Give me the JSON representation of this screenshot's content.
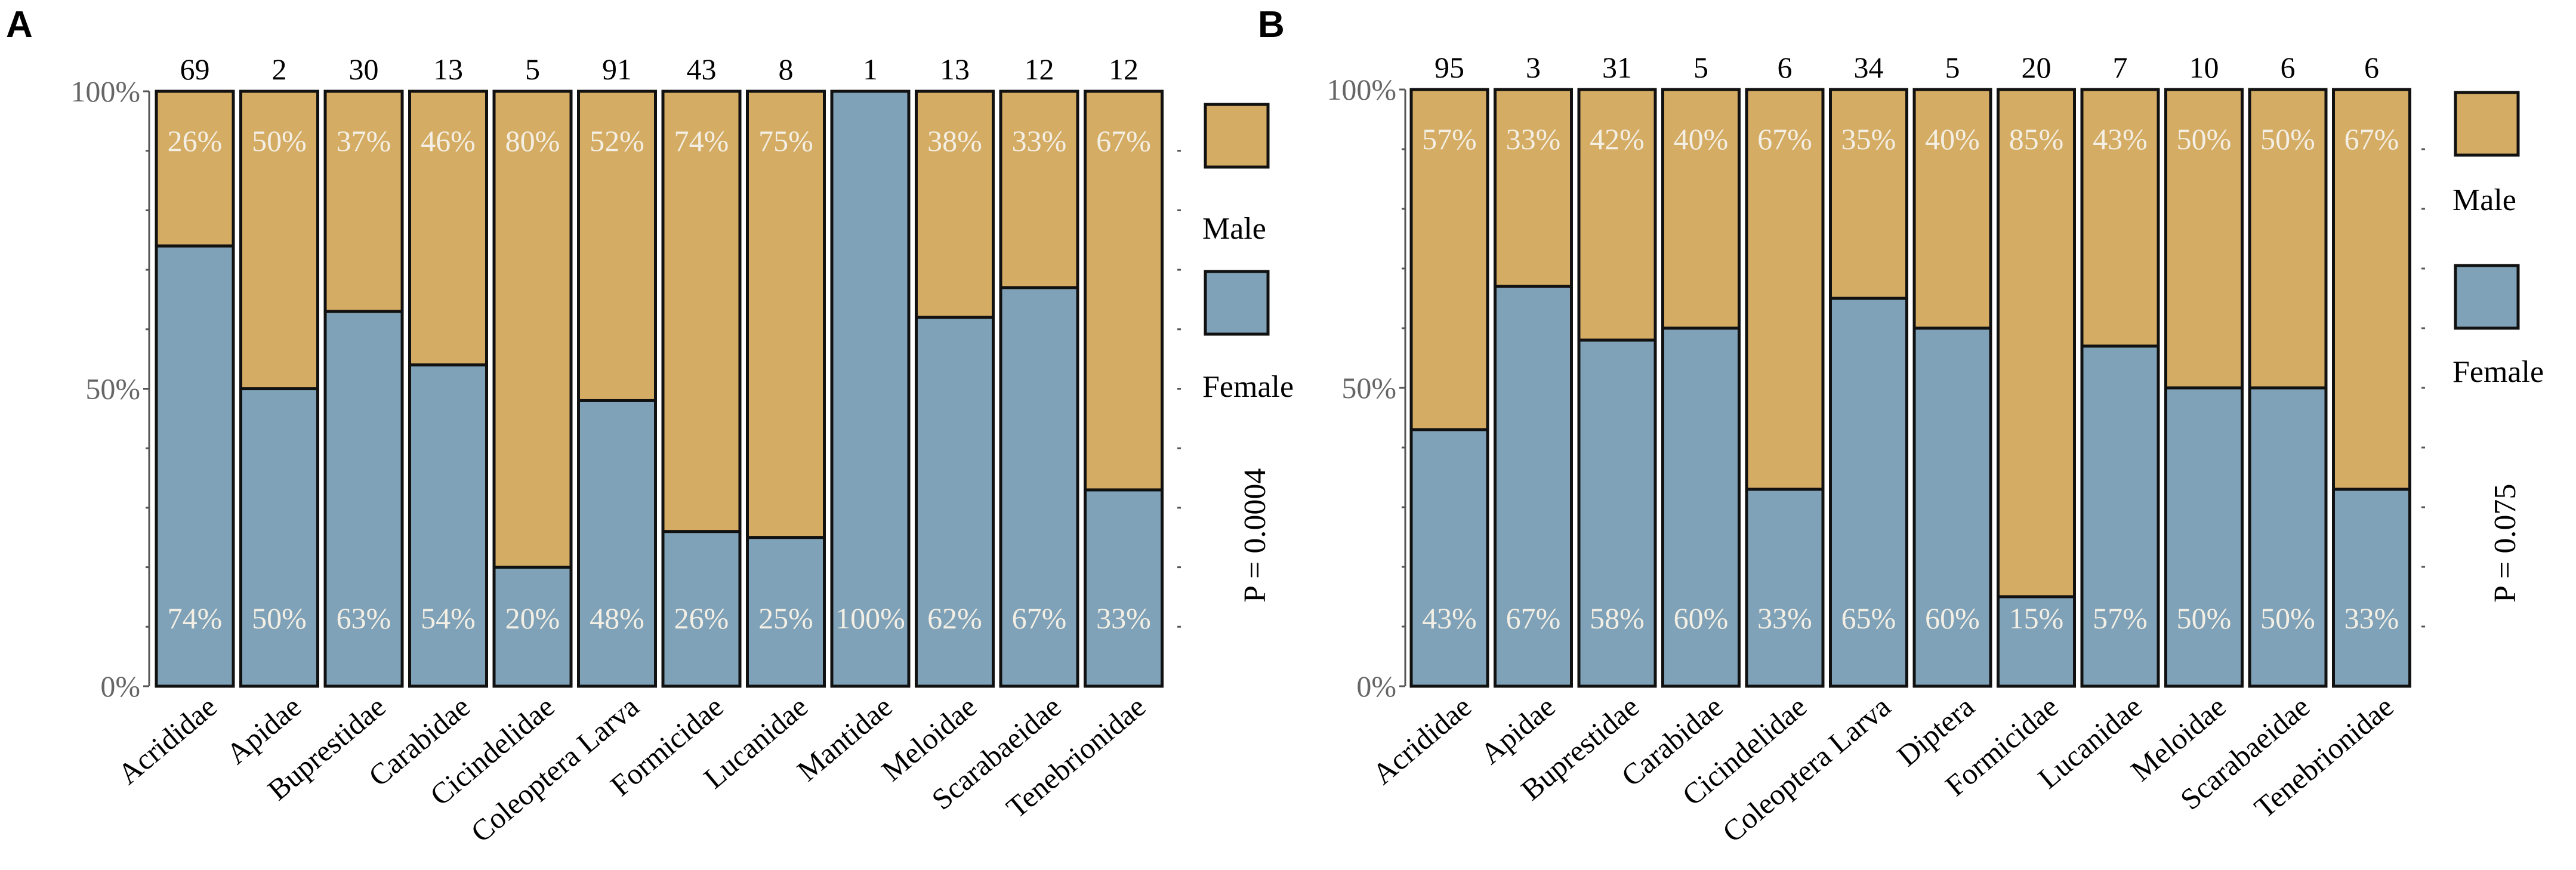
{
  "colors": {
    "male": "#D4AC64",
    "female": "#7FA2B8"
  },
  "legend": {
    "male_label": "Male",
    "female_label": "Female"
  },
  "chart_data": [
    {
      "type": "bar",
      "panel": "A",
      "stacked": true,
      "series_order": [
        "Female",
        "Male"
      ],
      "ylim": [
        0,
        100
      ],
      "ytick_labels": [
        "0%",
        "50%",
        "100%"
      ],
      "p_value": "P = 0.0004",
      "categories": [
        "Acrididae",
        "Apidae",
        "Buprestidae",
        "Carabidae",
        "Cicindelidae",
        "Coleoptera Larva",
        "Formicidae",
        "Lucanidae",
        "Mantidae",
        "Meloidae",
        "Scarabaeidae",
        "Tenebrionidae"
      ],
      "counts": [
        "69",
        "2",
        "30",
        "13",
        "5",
        "91",
        "43",
        "8",
        "1",
        "13",
        "12",
        "12"
      ],
      "female_values": [
        74,
        50,
        63,
        54,
        20,
        48,
        26,
        25,
        100,
        62,
        67,
        33
      ],
      "male_values": [
        26,
        50,
        37,
        46,
        80,
        52,
        74,
        75,
        0,
        38,
        33,
        67
      ],
      "female_labels": [
        "74%",
        "50%",
        "63%",
        "54%",
        "20%",
        "48%",
        "26%",
        "25%",
        "100%",
        "62%",
        "67%",
        "33%"
      ],
      "male_labels": [
        "26%",
        "50%",
        "37%",
        "46%",
        "80%",
        "52%",
        "74%",
        "75%",
        "",
        "38%",
        "33%",
        "67%"
      ]
    },
    {
      "type": "bar",
      "panel": "B",
      "stacked": true,
      "series_order": [
        "Female",
        "Male"
      ],
      "ylim": [
        0,
        100
      ],
      "ytick_labels": [
        "0%",
        "50%",
        "100%"
      ],
      "p_value": "P = 0.075",
      "categories": [
        "Acrididae",
        "Apidae",
        "Buprestidae",
        "Carabidae",
        "Cicindelidae",
        "Coleoptera Larva",
        "Diptera",
        "Formicidae",
        "Lucanidae",
        "Meloidae",
        "Scarabaeidae",
        "Tenebrionidae"
      ],
      "counts": [
        "95",
        "3",
        "31",
        "5",
        "6",
        "34",
        "5",
        "20",
        "7",
        "10",
        "6",
        "6"
      ],
      "female_values": [
        43,
        67,
        58,
        60,
        33,
        65,
        60,
        15,
        57,
        50,
        50,
        33
      ],
      "male_values": [
        57,
        33,
        42,
        40,
        67,
        35,
        40,
        85,
        43,
        50,
        50,
        67
      ],
      "female_labels": [
        "43%",
        "67%",
        "58%",
        "60%",
        "33%",
        "65%",
        "60%",
        "15%",
        "57%",
        "50%",
        "50%",
        "33%"
      ],
      "male_labels": [
        "57%",
        "33%",
        "42%",
        "40%",
        "67%",
        "35%",
        "40%",
        "85%",
        "43%",
        "50%",
        "50%",
        "67%"
      ]
    }
  ]
}
